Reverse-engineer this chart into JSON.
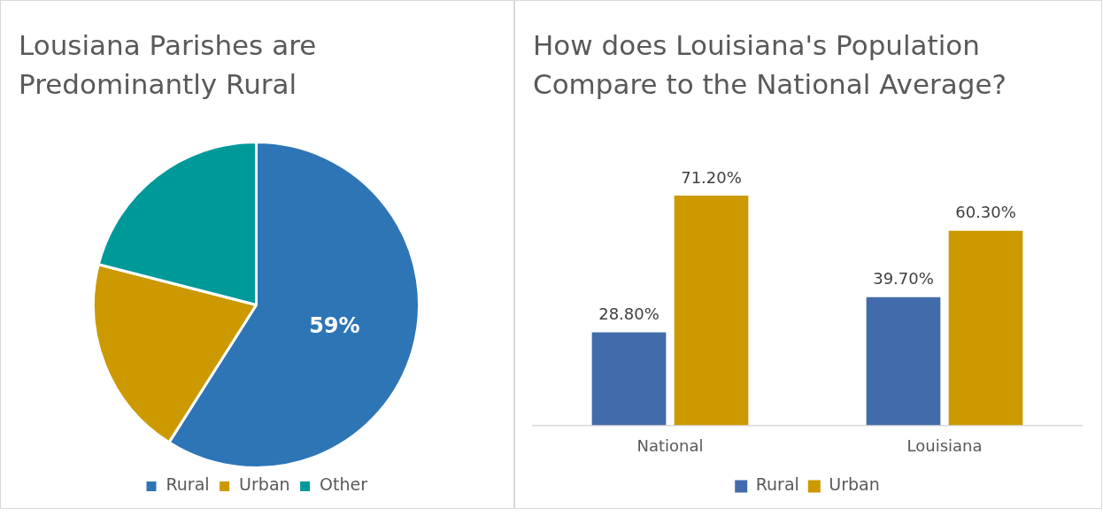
{
  "chart_data": [
    {
      "type": "pie",
      "title": "Lousiana Parishes are Predominantly Rural",
      "categories": [
        "Rural",
        "Urban",
        "Other"
      ],
      "values": [
        59,
        20,
        21
      ],
      "colors": [
        "#2e75b6",
        "#cc9900",
        "#009999"
      ],
      "value_labels": [
        "59%",
        null,
        null
      ],
      "legend": "bottom"
    },
    {
      "type": "bar",
      "title": "How does Louisiana's Population Compare to the National Average?",
      "categories": [
        "National",
        "Louisiana"
      ],
      "series": [
        {
          "name": "Rural",
          "color": "#416bab",
          "values": [
            28.8,
            39.7
          ],
          "value_labels": [
            "28.80%",
            "39.70%"
          ]
        },
        {
          "name": "Urban",
          "color": "#cc9900",
          "values": [
            71.2,
            60.3
          ],
          "value_labels": [
            "71.20%",
            "60.30%"
          ]
        }
      ],
      "grid": false,
      "legend": "bottom"
    }
  ]
}
